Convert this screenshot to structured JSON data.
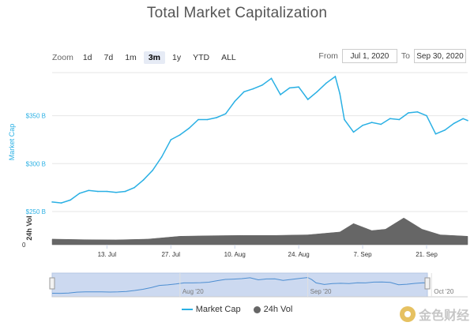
{
  "header": {
    "title": "Total Market Capitalization"
  },
  "zoom": {
    "label": "Zoom",
    "buttons": [
      "1d",
      "7d",
      "1m",
      "3m",
      "1y",
      "YTD",
      "ALL"
    ],
    "active": "3m"
  },
  "range": {
    "from_label": "From",
    "from_value": "Jul 1, 2020",
    "to_label": "To",
    "to_value": "Sep 30, 2020"
  },
  "legend": {
    "market_cap": "Market Cap",
    "volume": "24h Vol"
  },
  "watermark": {
    "text": "金色财经"
  },
  "colors": {
    "market_cap": "#2ab0e4",
    "volume": "#666666",
    "navigator_fill": "#ccd9f0"
  },
  "chart_data": {
    "type": "line",
    "title": "Total Market Capitalization",
    "ylabel": "Market Cap",
    "ylabel_volume": "24h Vol",
    "y_ticks": [
      "$250 B",
      "$300 B",
      "$350 B"
    ],
    "volume_ticks": [
      "0"
    ],
    "x_ticks": [
      "13. Jul",
      "27. Jul",
      "10. Aug",
      "24. Aug",
      "7. Sep",
      "21. Sep"
    ],
    "navigator_ticks": [
      "Aug '20",
      "Sep '20",
      "Oct '20"
    ],
    "ylim": [
      250,
      395
    ],
    "grid": true,
    "series": [
      {
        "name": "Market Cap",
        "unit": "B USD",
        "x": [
          "2020-07-01",
          "2020-07-03",
          "2020-07-05",
          "2020-07-07",
          "2020-07-09",
          "2020-07-11",
          "2020-07-13",
          "2020-07-15",
          "2020-07-17",
          "2020-07-19",
          "2020-07-21",
          "2020-07-23",
          "2020-07-25",
          "2020-07-27",
          "2020-07-29",
          "2020-07-31",
          "2020-08-02",
          "2020-08-04",
          "2020-08-06",
          "2020-08-08",
          "2020-08-10",
          "2020-08-12",
          "2020-08-14",
          "2020-08-16",
          "2020-08-18",
          "2020-08-20",
          "2020-08-22",
          "2020-08-24",
          "2020-08-26",
          "2020-08-28",
          "2020-08-30",
          "2020-09-01",
          "2020-09-02",
          "2020-09-03",
          "2020-09-05",
          "2020-09-07",
          "2020-09-09",
          "2020-09-11",
          "2020-09-13",
          "2020-09-15",
          "2020-09-17",
          "2020-09-19",
          "2020-09-21",
          "2020-09-23",
          "2020-09-25",
          "2020-09-27",
          "2020-09-29",
          "2020-09-30"
        ],
        "values": [
          260,
          259,
          262,
          269,
          272,
          271,
          271,
          270,
          271,
          275,
          283,
          293,
          307,
          325,
          330,
          337,
          346,
          346,
          348,
          352,
          365,
          375,
          378,
          382,
          389,
          372,
          379,
          380,
          367,
          375,
          384,
          391,
          373,
          346,
          333,
          340,
          343,
          341,
          347,
          346,
          353,
          354,
          350,
          331,
          335,
          342,
          347,
          345
        ]
      },
      {
        "name": "24h Vol",
        "unit": "relative",
        "x": [
          "2020-07-01",
          "2020-07-08",
          "2020-07-15",
          "2020-07-22",
          "2020-07-29",
          "2020-08-05",
          "2020-08-12",
          "2020-08-19",
          "2020-08-26",
          "2020-09-02",
          "2020-09-05",
          "2020-09-09",
          "2020-09-12",
          "2020-09-16",
          "2020-09-20",
          "2020-09-24",
          "2020-09-30"
        ],
        "values": [
          0.2,
          0.18,
          0.17,
          0.2,
          0.3,
          0.32,
          0.33,
          0.33,
          0.35,
          0.45,
          0.75,
          0.5,
          0.55,
          0.95,
          0.55,
          0.35,
          0.3
        ]
      }
    ]
  }
}
